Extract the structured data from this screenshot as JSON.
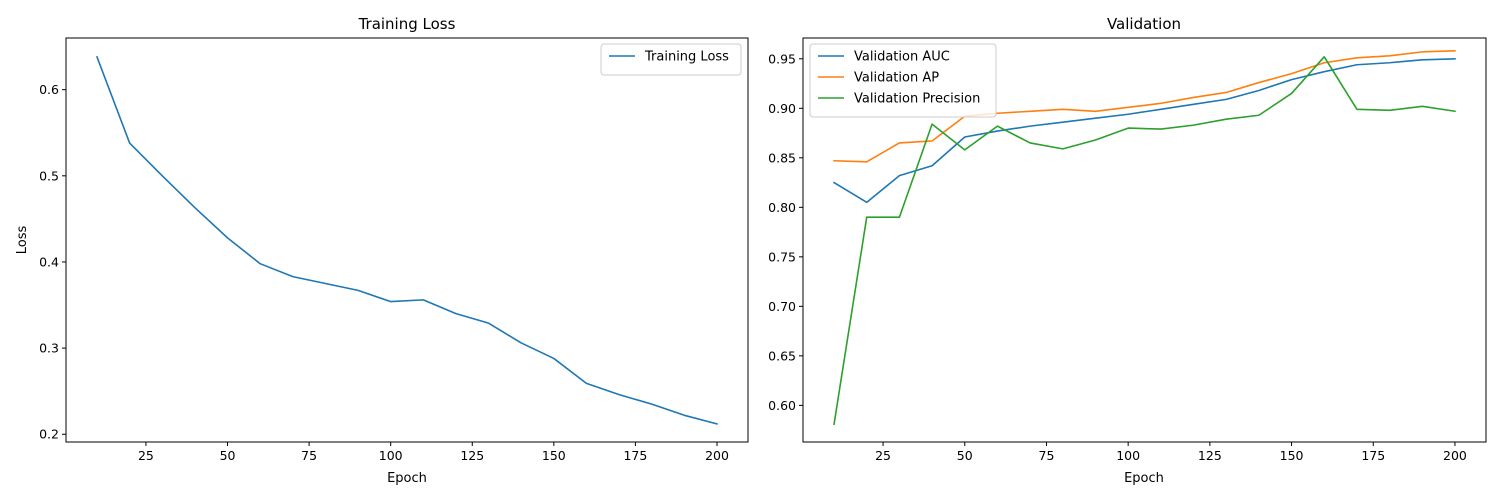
{
  "chart_data": [
    {
      "type": "line",
      "title": "Training Loss",
      "xlabel": "Epoch",
      "ylabel": "Loss",
      "xlim": [
        0.5,
        209.5
      ],
      "ylim": [
        0.191,
        0.66
      ],
      "xticks": [
        25,
        50,
        75,
        100,
        125,
        150,
        175,
        200
      ],
      "yticks": [
        0.2,
        0.3,
        0.4,
        0.5,
        0.6
      ],
      "xtick_labels": [
        "25",
        "50",
        "75",
        "100",
        "125",
        "150",
        "175",
        "200"
      ],
      "ytick_labels": [
        "0.2",
        "0.3",
        "0.4",
        "0.5",
        "0.6"
      ],
      "legend_position": "upper right",
      "grid": false,
      "x": [
        10,
        20,
        30,
        40,
        50,
        60,
        70,
        80,
        90,
        100,
        110,
        120,
        130,
        140,
        150,
        160,
        170,
        180,
        190,
        200
      ],
      "series": [
        {
          "name": "Training Loss",
          "color": "#1f77b4",
          "values": [
            0.638,
            0.538,
            0.5,
            0.463,
            0.428,
            0.398,
            0.383,
            0.375,
            0.367,
            0.354,
            0.356,
            0.34,
            0.329,
            0.306,
            0.288,
            0.259,
            0.246,
            0.235,
            0.222,
            0.212
          ]
        }
      ]
    },
    {
      "type": "line",
      "title": "Validation",
      "xlabel": "Epoch",
      "ylabel": "",
      "xlim": [
        0.5,
        209.5
      ],
      "ylim": [
        0.563,
        0.971
      ],
      "xticks": [
        25,
        50,
        75,
        100,
        125,
        150,
        175,
        200
      ],
      "yticks": [
        0.6,
        0.65,
        0.7,
        0.75,
        0.8,
        0.85,
        0.9,
        0.95
      ],
      "xtick_labels": [
        "25",
        "50",
        "75",
        "100",
        "125",
        "150",
        "175",
        "200"
      ],
      "ytick_labels": [
        "0.60",
        "0.65",
        "0.70",
        "0.75",
        "0.80",
        "0.85",
        "0.90",
        "0.95"
      ],
      "legend_position": "upper left",
      "grid": false,
      "x": [
        10,
        20,
        30,
        40,
        50,
        60,
        70,
        80,
        90,
        100,
        110,
        120,
        130,
        140,
        150,
        160,
        170,
        180,
        190,
        200
      ],
      "series": [
        {
          "name": "Validation AUC",
          "color": "#1f77b4",
          "values": [
            0.825,
            0.805,
            0.832,
            0.842,
            0.871,
            0.877,
            0.882,
            0.886,
            0.89,
            0.894,
            0.899,
            0.904,
            0.909,
            0.918,
            0.929,
            0.937,
            0.944,
            0.946,
            0.949,
            0.95
          ]
        },
        {
          "name": "Validation AP",
          "color": "#ff7f0e",
          "values": [
            0.847,
            0.846,
            0.865,
            0.867,
            0.892,
            0.895,
            0.897,
            0.899,
            0.897,
            0.901,
            0.905,
            0.911,
            0.916,
            0.926,
            0.935,
            0.946,
            0.951,
            0.953,
            0.957,
            0.958
          ]
        },
        {
          "name": "Validation Precision",
          "color": "#2ca02c",
          "values": [
            0.581,
            0.79,
            0.79,
            0.884,
            0.858,
            0.882,
            0.865,
            0.859,
            0.868,
            0.88,
            0.879,
            0.883,
            0.889,
            0.893,
            0.915,
            0.952,
            0.899,
            0.898,
            0.902,
            0.897
          ]
        }
      ]
    }
  ]
}
